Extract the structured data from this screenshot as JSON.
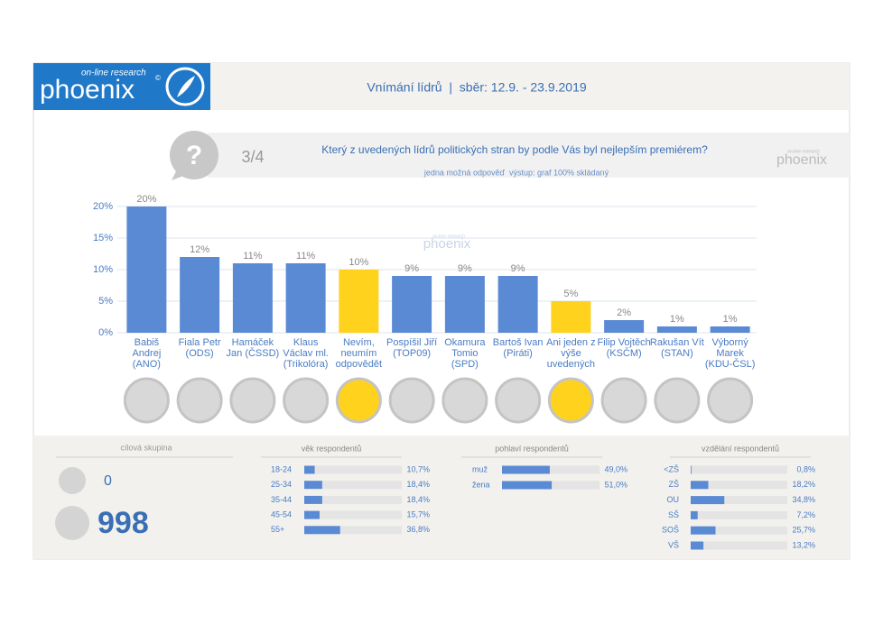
{
  "header": {
    "brand_small": "on-line research",
    "brand": "phoenix",
    "brand_mark": "©",
    "title": "Vnímání lídrů  |  sběr: 12.9. - 23.9.2019"
  },
  "question": {
    "icon": "?",
    "number": "3/4",
    "text": "Který z uvedených lídrů politických stran by podle Vás byl nejlepším premiérem?",
    "note": "jedna možná odpověď  výstup: graf 100% skládaný"
  },
  "watermark": {
    "small": "on-line research",
    "brand": "phoenix"
  },
  "target_group": {
    "title": "cílová skupina",
    "target": 0,
    "respondents": 998
  },
  "chart_data": [
    {
      "type": "bar",
      "categories": [
        "Babiš Andrej (ANO)",
        "Fiala Petr (ODS)",
        "Hamáček Jan (ČSSD)",
        "Klaus Václav ml. (Trikolóra)",
        "Nevím, neumím odpovědět",
        "Pospíšil Jiří (TOP09)",
        "Okamura Tomio (SPD)",
        "Bartoš Ivan (Piráti)",
        "Ani jeden z výše uvedených",
        "Filip Vojtěch (KSČM)",
        "Rakušan Vít (STAN)",
        "Výborný Marek (KDU-ČSL)"
      ],
      "values": [
        20,
        12,
        11,
        11,
        10,
        9,
        9,
        9,
        5,
        2,
        1,
        1
      ],
      "value_labels": [
        "20%",
        "12%",
        "11%",
        "11%",
        "10%",
        "9%",
        "9%",
        "9%",
        "5%",
        "2%",
        "1%",
        "1%"
      ],
      "colors": [
        "#5a8ad4",
        "#5a8ad4",
        "#5a8ad4",
        "#5a8ad4",
        "#ffd21e",
        "#5a8ad4",
        "#5a8ad4",
        "#5a8ad4",
        "#ffd21e",
        "#5a8ad4",
        "#5a8ad4",
        "#5a8ad4"
      ],
      "ylim": [
        0,
        20
      ],
      "yticks": [
        {
          "value": 0,
          "label": "0%"
        },
        {
          "value": 5,
          "label": "5%"
        },
        {
          "value": 10,
          "label": "10%"
        },
        {
          "value": 15,
          "label": "15%"
        },
        {
          "value": 20,
          "label": "20%"
        }
      ],
      "grid": true
    },
    {
      "type": "hbar",
      "title": "věk respondentů",
      "categories": [
        "18-24",
        "25-34",
        "35-44",
        "45-54",
        "55+"
      ],
      "values": [
        10.7,
        18.4,
        18.4,
        15.7,
        36.8
      ],
      "value_labels": [
        "10,7%",
        "18,4%",
        "18,4%",
        "15,7%",
        "36,8%"
      ],
      "xlim": [
        0,
        100
      ],
      "color": "#5a8ad4"
    },
    {
      "type": "hbar",
      "title": "pohlaví respondentů",
      "categories": [
        "muž",
        "žena"
      ],
      "values": [
        49.0,
        51.0
      ],
      "value_labels": [
        "49,0%",
        "51,0%"
      ],
      "xlim": [
        0,
        100
      ],
      "color": "#5a8ad4"
    },
    {
      "type": "hbar",
      "title": "vzdělání respondentů",
      "categories": [
        "<ZŠ",
        "ZŠ",
        "OU",
        "SŠ",
        "SOŠ",
        "VŠ"
      ],
      "values": [
        0.8,
        18.2,
        34.8,
        7.2,
        25.7,
        13.2
      ],
      "value_labels": [
        "0,8%",
        "18,2%",
        "34,8%",
        "7,2%",
        "25,7%",
        "13,2%"
      ],
      "xlim": [
        0,
        100
      ],
      "color": "#5a8ad4"
    }
  ]
}
